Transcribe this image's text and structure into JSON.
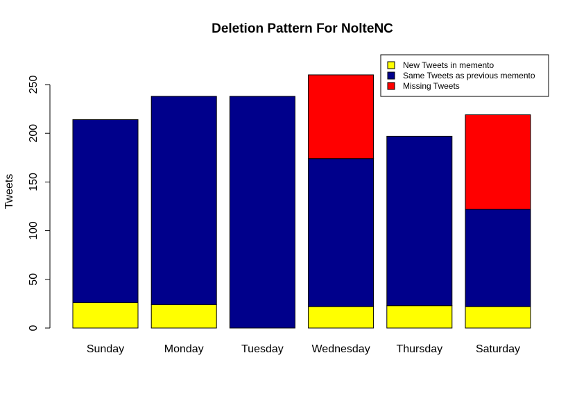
{
  "chart_data": {
    "type": "bar",
    "stacked": true,
    "title": "Deletion Pattern For NolteNC",
    "xlabel": "",
    "ylabel": "Tweets",
    "ylim": [
      0,
      270
    ],
    "yticks": [
      0,
      50,
      100,
      150,
      200,
      250
    ],
    "grid": false,
    "legend_position": "top-right",
    "categories": [
      "Sunday",
      "Monday",
      "Tuesday",
      "Wednesday",
      "Thursday",
      "Saturday"
    ],
    "series": [
      {
        "name": "New Tweets in memento",
        "color": "#ffff00",
        "values": [
          26,
          24,
          0,
          22,
          23,
          22
        ]
      },
      {
        "name": "Same Tweets as previous memento",
        "color": "#00008b",
        "values": [
          188,
          214,
          238,
          152,
          174,
          100
        ]
      },
      {
        "name": "Missing Tweets",
        "color": "#ff0000",
        "values": [
          0,
          0,
          0,
          86,
          0,
          97
        ]
      }
    ]
  }
}
